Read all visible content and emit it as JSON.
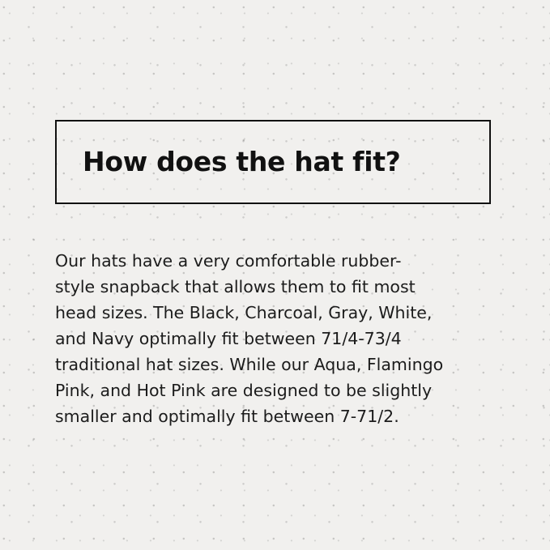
{
  "heading": "How does the hat fit?",
  "body_lines": [
    "Our hats have a very comfortable rubber-",
    "style snapback that allows them to fit most",
    "head sizes. The Black, Charcoal, Gray, White,",
    "and Navy optimally fit between 71/4-73/4",
    "traditional hat sizes. While our Aqua, Flamingo",
    "Pink, and Hot Pink are designed to be slightly",
    "smaller and optimally fit between 7-71/2."
  ],
  "colors": {
    "background": "#f1f0ee",
    "text": "#111111"
  }
}
